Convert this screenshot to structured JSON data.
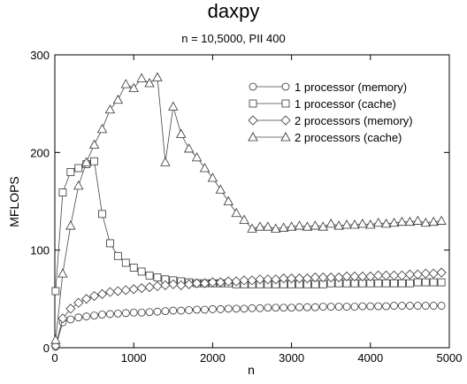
{
  "chart_data": {
    "type": "line",
    "title": "daxpy",
    "subtitle": "n = 10,5000, PII 400",
    "xlabel": "n",
    "ylabel": "MFLOPS",
    "xlim": [
      0,
      5000
    ],
    "ylim": [
      0,
      300
    ],
    "xticks": [
      0,
      1000,
      2000,
      3000,
      4000,
      5000
    ],
    "yticks": [
      0,
      100,
      200,
      300
    ],
    "grid": false,
    "legend_position": "top-right",
    "series": [
      {
        "name": "1 processor (memory)",
        "marker": "circle",
        "x": [
          10,
          100,
          200,
          300,
          400,
          500,
          600,
          700,
          800,
          900,
          1000,
          1100,
          1200,
          1300,
          1400,
          1500,
          1600,
          1700,
          1800,
          1900,
          2000,
          2100,
          2200,
          2300,
          2400,
          2500,
          2600,
          2700,
          2800,
          2900,
          3000,
          3100,
          3200,
          3300,
          3400,
          3500,
          3600,
          3700,
          3800,
          3900,
          4000,
          4100,
          4200,
          4300,
          4400,
          4500,
          4600,
          4700,
          4800,
          4900
        ],
        "values": [
          1,
          26,
          29,
          31,
          32,
          33,
          34,
          34.5,
          35,
          35.5,
          36,
          36,
          36.5,
          37,
          37.5,
          38,
          38,
          38.5,
          39,
          39,
          39.5,
          39.5,
          40,
          40,
          40,
          40.5,
          40.5,
          41,
          41,
          41,
          41,
          41.5,
          41.5,
          41.5,
          42,
          42,
          42,
          42,
          42,
          42.5,
          42.5,
          42.5,
          42.5,
          43,
          43,
          43,
          43,
          43,
          43,
          43
        ]
      },
      {
        "name": "1 processor (cache)",
        "marker": "square",
        "x": [
          10,
          100,
          200,
          300,
          400,
          500,
          600,
          700,
          800,
          900,
          1000,
          1100,
          1200,
          1300,
          1400,
          1500,
          1600,
          1700,
          1800,
          1900,
          2000,
          2100,
          2200,
          2300,
          2400,
          2500,
          2600,
          2700,
          2800,
          2900,
          3000,
          3100,
          3200,
          3300,
          3400,
          3500,
          3600,
          3700,
          3800,
          3900,
          4000,
          4100,
          4200,
          4300,
          4400,
          4500,
          4600,
          4700,
          4800,
          4900
        ],
        "values": [
          58,
          159,
          180,
          184,
          188,
          191,
          137,
          107,
          94,
          87,
          82,
          78,
          74,
          72,
          70,
          69,
          68,
          67,
          66,
          66,
          66,
          66,
          66,
          65,
          65,
          65,
          65,
          65,
          65,
          65,
          65,
          65,
          65,
          65,
          65,
          66,
          66,
          66,
          66,
          66,
          66,
          66,
          66,
          66,
          66,
          66,
          67,
          67,
          67,
          67
        ]
      },
      {
        "name": "2 processors (memory)",
        "marker": "diamond",
        "x": [
          10,
          100,
          200,
          300,
          400,
          500,
          600,
          700,
          800,
          900,
          1000,
          1100,
          1200,
          1300,
          1400,
          1500,
          1600,
          1700,
          1800,
          1900,
          2000,
          2100,
          2200,
          2300,
          2400,
          2500,
          2600,
          2700,
          2800,
          2900,
          3000,
          3100,
          3200,
          3300,
          3400,
          3500,
          3600,
          3700,
          3800,
          3900,
          4000,
          4100,
          4200,
          4300,
          4400,
          4500,
          4600,
          4700,
          4800,
          4900
        ],
        "values": [
          2,
          30,
          40,
          46,
          50,
          53,
          55,
          57,
          58,
          59,
          60,
          61,
          62,
          63,
          64,
          65,
          64,
          65,
          66,
          66,
          67,
          67,
          68,
          68,
          69,
          69,
          70,
          70,
          70,
          71,
          71,
          71,
          71,
          72,
          72,
          72,
          72,
          73,
          73,
          73,
          73,
          74,
          74,
          74,
          74,
          75,
          75,
          76,
          76,
          77
        ]
      },
      {
        "name": "2 processors (cache)",
        "marker": "triangle",
        "x": [
          10,
          100,
          200,
          300,
          400,
          500,
          600,
          700,
          800,
          900,
          1000,
          1100,
          1200,
          1300,
          1400,
          1500,
          1600,
          1700,
          1800,
          1900,
          2000,
          2100,
          2200,
          2300,
          2400,
          2500,
          2600,
          2700,
          2800,
          2900,
          3000,
          3100,
          3200,
          3300,
          3400,
          3500,
          3600,
          3700,
          3800,
          3900,
          4000,
          4100,
          4200,
          4300,
          4400,
          4500,
          4600,
          4700,
          4800,
          4900
        ],
        "values": [
          8,
          76,
          125,
          166,
          190,
          208,
          224,
          244,
          254,
          270,
          266,
          276,
          271,
          277,
          190,
          247,
          219,
          204,
          195,
          184,
          174,
          162,
          150,
          138,
          131,
          122,
          124,
          124,
          122,
          123,
          124,
          125,
          124,
          125,
          124,
          127,
          125,
          126,
          126,
          127,
          126,
          128,
          127,
          128,
          129,
          129,
          130,
          128,
          129,
          130
        ]
      }
    ]
  }
}
